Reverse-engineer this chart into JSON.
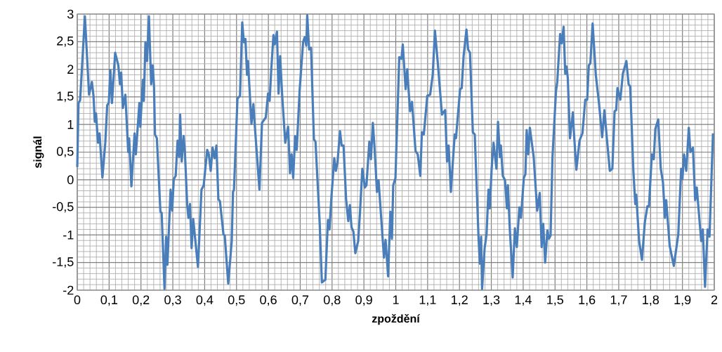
{
  "chart_data": {
    "type": "line",
    "xlabel": "zpoždění",
    "ylabel": "signál",
    "color": "#4a7ebb",
    "grid": true,
    "line_style": "solid",
    "marker": "none",
    "xlim": [
      0,
      2
    ],
    "ylim": [
      -2,
      3
    ],
    "xticks": [
      0,
      {
        "value": 0.1,
        "label": "0,1"
      },
      {
        "value": 0.2,
        "label": "0,2"
      },
      {
        "value": 0.3,
        "label": "0,3"
      },
      {
        "value": 0.4,
        "label": "0,4"
      },
      {
        "value": 0.5,
        "label": "0,5"
      },
      {
        "value": 0.6,
        "label": "0,6"
      },
      {
        "value": 0.7,
        "label": "0,7"
      },
      {
        "value": 0.8,
        "label": "0,8"
      },
      {
        "value": 0.9,
        "label": "0,9"
      },
      1,
      {
        "value": 1.1,
        "label": "1,1"
      },
      {
        "value": 1.2,
        "label": "1,2"
      },
      {
        "value": 1.3,
        "label": "1,3"
      },
      {
        "value": 1.4,
        "label": "1,4"
      },
      {
        "value": 1.5,
        "label": "1,5"
      },
      {
        "value": 1.6,
        "label": "1,6"
      },
      {
        "value": 1.7,
        "label": "1,7"
      },
      {
        "value": 1.8,
        "label": "1,8"
      },
      {
        "value": 1.9,
        "label": "1,9"
      },
      2
    ],
    "yticks": [
      -2,
      {
        "value": -1.5,
        "label": "-1,5"
      },
      -1,
      {
        "value": -0.5,
        "label": "-0,5"
      },
      0,
      {
        "value": 0.5,
        "label": "0,5"
      },
      1,
      {
        "value": 1.5,
        "label": "1,5"
      },
      2,
      {
        "value": 2.5,
        "label": "2,5"
      },
      3
    ],
    "x": [
      0,
      0.004,
      0.009,
      0.024,
      0.037,
      0.046,
      0.051,
      0.055,
      0.059,
      0.065,
      0.07,
      0.079,
      0.088,
      0.094,
      0.099,
      0.104,
      0.109,
      0.119,
      0.129,
      0.134,
      0.138,
      0.143,
      0.151,
      0.16,
      0.163,
      0.17,
      0.18,
      0.184,
      0.195,
      0.198,
      0.206,
      0.209,
      0.214,
      0.219,
      0.225,
      0.232,
      0.237,
      0.241,
      0.244,
      0.25,
      0.261,
      0.265,
      0.274,
      0.279,
      0.283,
      0.293,
      0.298,
      0.303,
      0.309,
      0.315,
      0.32,
      0.323,
      0.328,
      0.334,
      0.338,
      0.345,
      0.349,
      0.354,
      0.359,
      0.364,
      0.379,
      0.39,
      0.397,
      0.408,
      0.413,
      0.419,
      0.425,
      0.431,
      0.437,
      0.443,
      0.448,
      0.459,
      0.463,
      0.474,
      0.485,
      0.489,
      0.492,
      0.503,
      0.511,
      0.518,
      0.523,
      0.528,
      0.533,
      0.536,
      0.547,
      0.553,
      0.557,
      0.572,
      0.58,
      0.592,
      0.599,
      0.604,
      0.609,
      0.616,
      0.62,
      0.627,
      0.632,
      0.637,
      0.643,
      0.653,
      0.662,
      0.668,
      0.673,
      0.678,
      0.684,
      0.689,
      0.698,
      0.709,
      0.714,
      0.719,
      0.722,
      0.728,
      0.734,
      0.743,
      0.748,
      0.761,
      0.768,
      0.779,
      0.787,
      0.792,
      0.798,
      0.807,
      0.812,
      0.817,
      0.825,
      0.83,
      0.836,
      0.844,
      0.851,
      0.856,
      0.861,
      0.867,
      0.873,
      0.882,
      0.888,
      0.895,
      0.903,
      0.908,
      0.917,
      0.922,
      0.928,
      0.933,
      0.941,
      0.946,
      0.963,
      0.968,
      0.976,
      0.983,
      0.988,
      0.992,
      0.999,
      1.011,
      1.018,
      1.022,
      1.031,
      1.036,
      1.04,
      1.045,
      1.051,
      1.062,
      1.069,
      1.077,
      1.082,
      1.088,
      1.099,
      1.108,
      1.116,
      1.123,
      1.132,
      1.145,
      1.155,
      1.161,
      1.166,
      1.173,
      1.185,
      1.189,
      1.202,
      1.207,
      1.213,
      1.222,
      1.227,
      1.233,
      1.242,
      1.248,
      1.26,
      1.264,
      1.268,
      1.271,
      1.279,
      1.285,
      1.291,
      1.295,
      1.301,
      1.307,
      1.316,
      1.321,
      1.327,
      1.33,
      1.336,
      1.343,
      1.349,
      1.352,
      1.358,
      1.367,
      1.374,
      1.38,
      1.388,
      1.393,
      1.402,
      1.407,
      1.411,
      1.416,
      1.421,
      1.433,
      1.444,
      1.452,
      1.458,
      1.463,
      1.469,
      1.476,
      1.481,
      1.486,
      1.492,
      1.503,
      1.507,
      1.516,
      1.521,
      1.527,
      1.532,
      1.536,
      1.54,
      1.547,
      1.556,
      1.56,
      1.567,
      1.577,
      1.586,
      1.595,
      1.601,
      1.606,
      1.611,
      1.618,
      1.624,
      1.628,
      1.638,
      1.648,
      1.655,
      1.663,
      1.672,
      1.68,
      1.687,
      1.692,
      1.696,
      1.705,
      1.713,
      1.724,
      1.731,
      1.736,
      1.746,
      1.752,
      1.755,
      1.764,
      1.773,
      1.782,
      1.79,
      1.795,
      1.804,
      1.81,
      1.815,
      1.824,
      1.832,
      1.839,
      1.845,
      1.849,
      1.86,
      1.873,
      1.887,
      1.896,
      1.9,
      1.905,
      1.912,
      1.92,
      1.925,
      1.933,
      1.94,
      1.945,
      1.959,
      1.964,
      1.971,
      1.979,
      1.985,
      1.996
    ],
    "values": [
      0.23,
      1.39,
      1.44,
      2.96,
      1.54,
      1.77,
      1.52,
      1.05,
      1.2,
      0.67,
      0.84,
      0.04,
      0.67,
      1.35,
      1.39,
      1.98,
      1.39,
      2.3,
      2.07,
      1.73,
      1.94,
      1.3,
      1.54,
      0.5,
      0.75,
      -0.12,
      0.84,
      0.46,
      1.39,
      0.96,
      1.81,
      1.43,
      2.49,
      2.15,
      2.96,
      1.73,
      2.07,
      1.69,
      0.82,
      0.75,
      -0.58,
      -0.6,
      -1.98,
      -1.03,
      -1.54,
      -0.18,
      -0.56,
      0.01,
      0.07,
      0.71,
      0.41,
      1.18,
      0.33,
      0.79,
      0.5,
      -0.44,
      -0.69,
      -0.44,
      -1.24,
      -0.71,
      -1.58,
      -0.18,
      -0.1,
      0.54,
      0.46,
      0.16,
      0.58,
      0.39,
      0.62,
      -0.35,
      -0.39,
      -0.99,
      -1.01,
      -1.88,
      -1.11,
      -0.22,
      -0.18,
      1.47,
      1.52,
      2.85,
      2.49,
      2.55,
      1.9,
      2.15,
      1.01,
      1.37,
      1.01,
      -0.18,
      1.03,
      1.13,
      1.56,
      1.43,
      1.98,
      2.62,
      2.45,
      2.68,
      1.56,
      2.24,
      1.56,
      0.67,
      0.96,
      0.12,
      0.46,
      0.03,
      0.79,
      0.54,
      1.6,
      2.49,
      2.58,
      2.43,
      2.98,
      2.36,
      2.39,
      0.73,
      0.69,
      -0.77,
      -1.86,
      -1.81,
      -0.73,
      -0.9,
      -0.31,
      0.39,
      0.16,
      0.31,
      0.88,
      0.62,
      0.62,
      -0.35,
      -0.75,
      -0.46,
      -0.86,
      -0.94,
      -1.33,
      -1.11,
      -0.56,
      0.2,
      -0.14,
      -0.1,
      0.69,
      0.37,
      1.03,
      0.62,
      -0.22,
      -0.01,
      -1.41,
      -1.09,
      -1.75,
      -0.58,
      -1.07,
      -0.1,
      0.03,
      2.22,
      2.19,
      2.45,
      1.64,
      2.0,
      1.64,
      1.24,
      1.41,
      0.52,
      0.46,
      0.07,
      0.86,
      0.82,
      1.52,
      1.54,
      1.9,
      2.7,
      2.11,
      1.18,
      1.26,
      0.33,
      0.62,
      -0.22,
      0.82,
      0.75,
      1.64,
      1.66,
      2.24,
      2.72,
      2.36,
      2.3,
      0.86,
      0.82,
      -1.07,
      -1.52,
      -1.03,
      -1.98,
      -1.24,
      -0.99,
      -0.18,
      -0.52,
      0.2,
      0.67,
      0.2,
      1.05,
      0.41,
      0.62,
      0.07,
      -0.01,
      -0.52,
      -0.1,
      -0.9,
      -1.77,
      -0.88,
      -1.22,
      -0.5,
      -0.69,
      0.03,
      0.1,
      0.9,
      0.46,
      0.94,
      0.41,
      -0.56,
      -0.24,
      -1.22,
      -0.8,
      -1.5,
      -0.92,
      -1.07,
      -1.01,
      0.41,
      1.6,
      1.77,
      2.64,
      2.47,
      2.77,
      1.92,
      2.05,
      1.85,
      0.75,
      1.22,
      0.79,
      0.18,
      0.71,
      0.84,
      1.45,
      1.45,
      2.07,
      2.11,
      2.83,
      2.28,
      1.9,
      1.39,
      0.77,
      1.26,
      0.73,
      0.16,
      0.2,
      1.24,
      1.26,
      1.66,
      1.45,
      1.92,
      2.15,
      1.73,
      1.69,
      0.16,
      -0.44,
      -0.27,
      -1.11,
      -1.45,
      -0.77,
      -0.48,
      -0.48,
      0.46,
      0.37,
      0.92,
      1.09,
      0.2,
      -0.05,
      -0.69,
      -0.37,
      -1.2,
      -1.56,
      -0.99,
      0.2,
      0.01,
      0.46,
      0.16,
      0.94,
      0.5,
      0.58,
      -0.37,
      -0.14,
      -1.11,
      -0.9,
      -1.94,
      -0.9,
      -1.03,
      0.84
    ]
  }
}
